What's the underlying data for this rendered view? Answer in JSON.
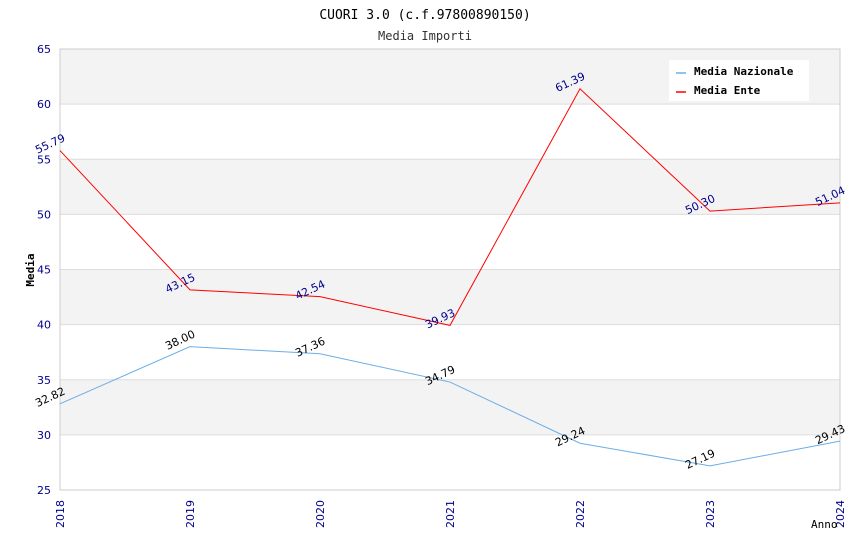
{
  "chart_data": {
    "type": "line",
    "title": "CUORI 3.0 (c.f.97800890150)",
    "subtitle": "Media Importi",
    "xlabel": "Anno",
    "ylabel": "Media",
    "x": [
      "2018",
      "2019",
      "2020",
      "2021",
      "2022",
      "2023",
      "2024"
    ],
    "ylim": [
      25,
      65
    ],
    "yticks": [
      25,
      30,
      35,
      40,
      45,
      50,
      55,
      60,
      65
    ],
    "grid": "horizontal alternating bands",
    "legend_position": "top-right",
    "series": [
      {
        "name": "Media Nazionale",
        "color": "#6aaee8",
        "label_color": "#000000",
        "values": [
          32.82,
          38.0,
          37.36,
          34.79,
          29.24,
          27.19,
          29.43
        ],
        "labels": [
          "32.82",
          "38.00",
          "37.36",
          "34.79",
          "29.24",
          "27.19",
          "29.43"
        ]
      },
      {
        "name": "Media Ente",
        "color": "#ff0000",
        "label_color": "#00008b",
        "values": [
          55.79,
          43.15,
          42.54,
          39.93,
          61.39,
          50.3,
          51.04
        ],
        "labels": [
          "55.79",
          "43.15",
          "42.54",
          "39.93",
          "61.39",
          "50.30",
          "51.04"
        ]
      }
    ]
  }
}
